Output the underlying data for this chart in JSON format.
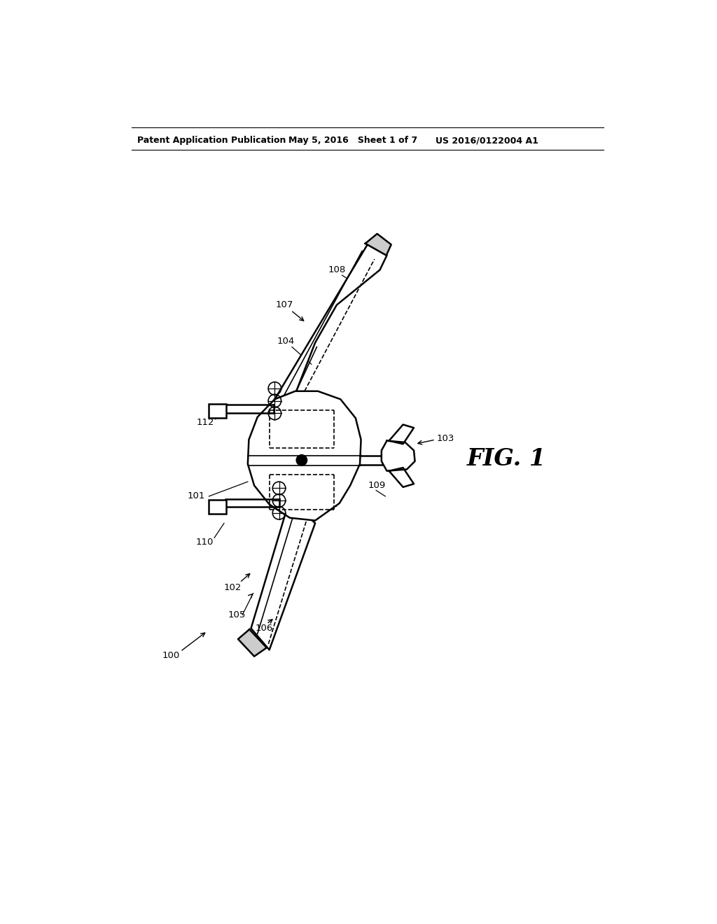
{
  "bg_color": "#ffffff",
  "line_color": "#000000",
  "header_text1": "Patent Application Publication",
  "header_text2": "May 5, 2016   Sheet 1 of 7",
  "header_text3": "US 2016/0122004 A1",
  "fig_label": "FIG. 1",
  "lw_thin": 1.2,
  "lw_med": 1.8,
  "lw_thick": 2.5,
  "label_fontsize": 9.5
}
